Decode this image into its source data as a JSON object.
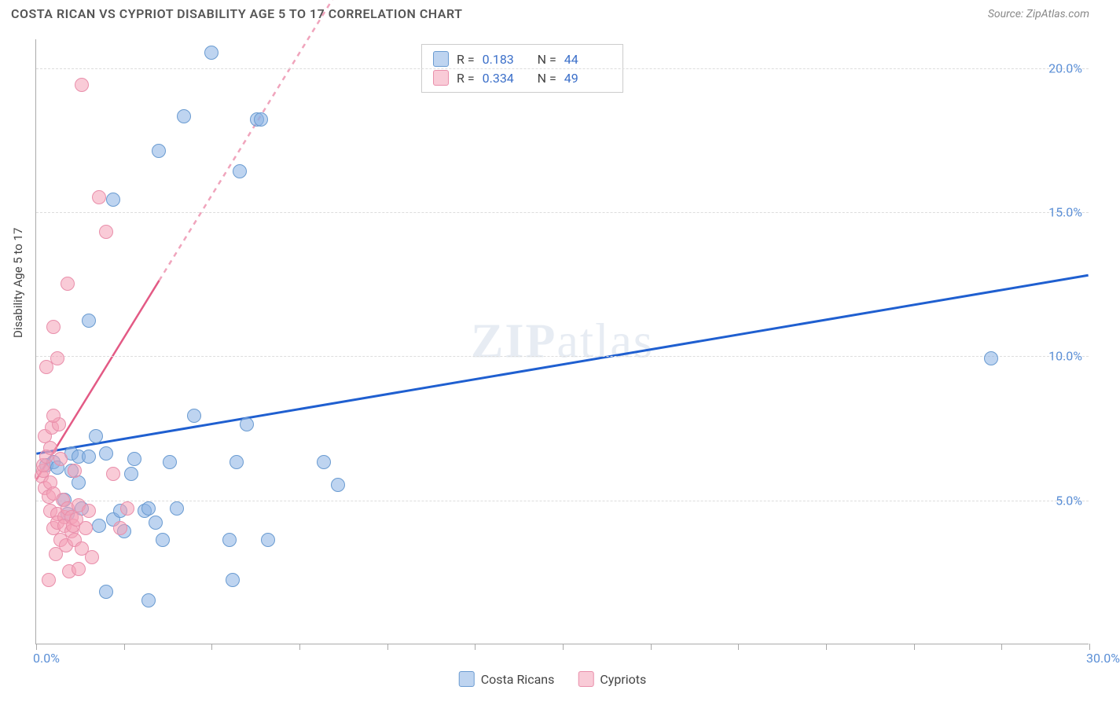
{
  "header": {
    "title": "COSTA RICAN VS CYPRIOT DISABILITY AGE 5 TO 17 CORRELATION CHART",
    "source_label": "Source: ZipAtlas.com"
  },
  "chart": {
    "type": "scatter",
    "y_axis_title": "Disability Age 5 to 17",
    "watermark": "ZIPatlas",
    "xlim": [
      0,
      30
    ],
    "ylim": [
      0,
      21
    ],
    "x_ticks": [
      0,
      2.5,
      5,
      7.5,
      10,
      12.5,
      15,
      17.5,
      20,
      22.5,
      25,
      27.5,
      30
    ],
    "x_tick_labels": {
      "0": "0.0%",
      "30": "30.0%"
    },
    "y_gridlines": [
      5,
      10,
      15,
      20
    ],
    "y_tick_labels": {
      "5": "5.0%",
      "10": "10.0%",
      "15": "15.0%",
      "20": "20.0%"
    },
    "background_color": "#ffffff",
    "grid_color": "#dddddd",
    "axis_color": "#aaaaaa",
    "label_color": "#5b8fd6",
    "series": [
      {
        "name": "Costa Ricans",
        "fill": "rgba(137,177,228,0.55)",
        "stroke": "#6a9bd1",
        "trend_color": "#1f5fd0",
        "trend_width": 3,
        "trend_dash_after_x": 100,
        "trend": {
          "x1": 0,
          "y1": 6.6,
          "x2": 30,
          "y2": 12.8
        },
        "R": "0.183",
        "N": "44",
        "points": [
          [
            0.3,
            6.2
          ],
          [
            0.5,
            6.3
          ],
          [
            0.6,
            6.1
          ],
          [
            0.8,
            5.0
          ],
          [
            1.0,
            6.6
          ],
          [
            1.0,
            6.0
          ],
          [
            1.2,
            6.5
          ],
          [
            1.3,
            4.7
          ],
          [
            1.5,
            6.5
          ],
          [
            1.5,
            11.2
          ],
          [
            1.8,
            4.1
          ],
          [
            2.0,
            6.6
          ],
          [
            2.2,
            4.3
          ],
          [
            2.2,
            15.4
          ],
          [
            2.4,
            4.6
          ],
          [
            2.5,
            3.9
          ],
          [
            2.7,
            5.9
          ],
          [
            2.8,
            6.4
          ],
          [
            3.1,
            4.6
          ],
          [
            3.2,
            4.7
          ],
          [
            3.2,
            1.5
          ],
          [
            3.4,
            4.2
          ],
          [
            3.5,
            17.1
          ],
          [
            3.6,
            3.6
          ],
          [
            3.8,
            6.3
          ],
          [
            4.0,
            4.7
          ],
          [
            4.2,
            18.3
          ],
          [
            4.5,
            7.9
          ],
          [
            5.0,
            20.5
          ],
          [
            5.5,
            3.6
          ],
          [
            5.6,
            2.2
          ],
          [
            5.7,
            6.3
          ],
          [
            5.8,
            16.4
          ],
          [
            6.0,
            7.6
          ],
          [
            6.3,
            18.2
          ],
          [
            6.4,
            18.2
          ],
          [
            6.6,
            3.6
          ],
          [
            8.2,
            6.3
          ],
          [
            8.6,
            5.5
          ],
          [
            27.2,
            9.9
          ],
          [
            2.0,
            1.8
          ],
          [
            1.2,
            5.6
          ],
          [
            0.9,
            4.5
          ],
          [
            1.7,
            7.2
          ]
        ]
      },
      {
        "name": "Cypriots",
        "fill": "rgba(244,160,183,0.55)",
        "stroke": "#e98fab",
        "trend_color": "#e35a85",
        "trend_width": 2.5,
        "trend_dash_after_x": 3.5,
        "trend": {
          "x1": 0,
          "y1": 5.7,
          "x2": 8.5,
          "y2": 22.5
        },
        "R": "0.334",
        "N": "49",
        "points": [
          [
            0.15,
            5.8
          ],
          [
            0.2,
            6.0
          ],
          [
            0.2,
            6.2
          ],
          [
            0.25,
            7.2
          ],
          [
            0.25,
            5.4
          ],
          [
            0.3,
            6.5
          ],
          [
            0.3,
            9.6
          ],
          [
            0.35,
            5.1
          ],
          [
            0.4,
            4.6
          ],
          [
            0.4,
            5.6
          ],
          [
            0.4,
            6.8
          ],
          [
            0.45,
            7.5
          ],
          [
            0.5,
            4.0
          ],
          [
            0.5,
            5.2
          ],
          [
            0.5,
            11.0
          ],
          [
            0.55,
            3.1
          ],
          [
            0.6,
            4.5
          ],
          [
            0.6,
            4.2
          ],
          [
            0.6,
            9.9
          ],
          [
            0.65,
            7.6
          ],
          [
            0.7,
            3.6
          ],
          [
            0.7,
            6.4
          ],
          [
            0.75,
            5.0
          ],
          [
            0.8,
            4.4
          ],
          [
            0.8,
            4.1
          ],
          [
            0.85,
            3.4
          ],
          [
            0.9,
            12.5
          ],
          [
            0.9,
            4.7
          ],
          [
            0.95,
            2.5
          ],
          [
            1.0,
            3.9
          ],
          [
            1.0,
            4.4
          ],
          [
            1.05,
            4.1
          ],
          [
            1.1,
            3.6
          ],
          [
            1.1,
            6.0
          ],
          [
            1.15,
            4.3
          ],
          [
            1.2,
            2.6
          ],
          [
            1.2,
            4.8
          ],
          [
            1.3,
            3.3
          ],
          [
            1.3,
            19.4
          ],
          [
            1.4,
            4.0
          ],
          [
            1.5,
            4.6
          ],
          [
            1.6,
            3.0
          ],
          [
            1.8,
            15.5
          ],
          [
            2.0,
            14.3
          ],
          [
            2.2,
            5.9
          ],
          [
            2.4,
            4.0
          ],
          [
            2.6,
            4.7
          ],
          [
            0.35,
            2.2
          ],
          [
            0.5,
            7.9
          ]
        ]
      }
    ],
    "stats_box": {
      "rows": [
        {
          "series_idx": 0,
          "r_label": "R =",
          "n_label": "N ="
        },
        {
          "series_idx": 1,
          "r_label": "R =",
          "n_label": "N ="
        }
      ]
    },
    "bottom_legend": [
      {
        "series_idx": 0
      },
      {
        "series_idx": 1
      }
    ]
  }
}
